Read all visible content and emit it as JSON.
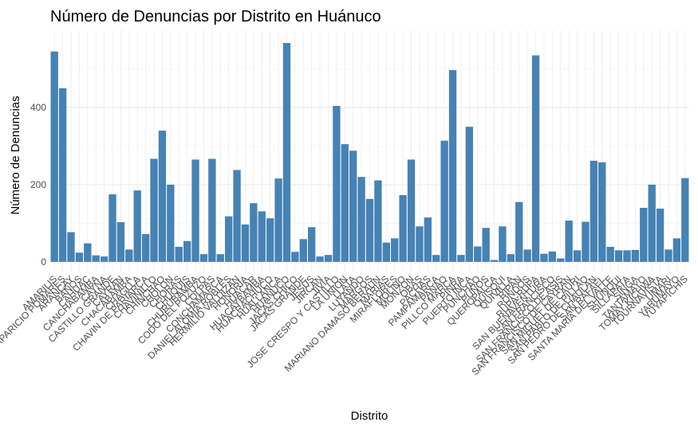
{
  "chart_data": {
    "type": "bar",
    "title": "Número de Denuncias por Distrito en Huánuco",
    "x_label": "Distrito",
    "y_label": "Número de Denuncias",
    "color": "#4682b4",
    "grid": true,
    "categories": [
      "AMARILIS",
      "APARICIO POMARES",
      "ARANCAY",
      "BAÑOS",
      "CAHUAC",
      "CANCHABAMBA",
      "CAYNA",
      "CASTILLO GRANDE",
      "CAYRAN",
      "CHACABAMBA",
      "CHAGLLA",
      "CHAVIN DE PARIARCA",
      "CHAVINILLO",
      "CHINCHAO",
      "CHOLON",
      "CHORAS",
      "CHUQUIS",
      "CHURUBAMBA",
      "CODO DEL POZUZO",
      "COLPAS",
      "CONCHAMARCA",
      "DANIEL ALOMIA ROBLES",
      "HERMILIO VALDIZAN",
      "HONORIA",
      "HUACAR",
      "HUACAYBAMBA",
      "HUACRACHUCO",
      "HUALLANCA",
      "HUANUCO",
      "JACAS CHICO",
      "JACAS GRANDE",
      "JESUS",
      "JIRCAN",
      "JIVIA",
      "JOSE CRESPO Y CASTILLO",
      "LA UNION",
      "LLATA",
      "LUYANDO",
      "MARGOS",
      "MARIANO DAMASO BERAUN",
      "MARIAS",
      "MIRAFLORES",
      "MOLINO",
      "MONZON",
      "OBAS",
      "PACHAS",
      "PAMPAMARCA",
      "PANAO",
      "PILLCO MARCA",
      "PINRA",
      "PUERTO INCA",
      "PUNCHAO",
      "PUÑOS",
      "QUEROPALCA",
      "QUISQUI",
      "QUIVILLA",
      "RIPAN",
      "RONDOS",
      "RUPA-RUPA",
      "SAN BUENAVENTURA",
      "SAN FRANCISCO",
      "SAN FRANCISCO DE ASIS",
      "SAN FRANCISCO DE CAYRAN",
      "SAN MIGUEL DE CAURI",
      "SAN PABLO DE PILLAO",
      "SAN PEDRO DE CHAULAN",
      "SAN RAFAEL",
      "SANTA MARIA DEL VALLE",
      "SHUNQUI",
      "SILLAPATA",
      "SINGA",
      "TANTAMAYO",
      "TOMAY KICHWA",
      "TOURNAVISTA",
      "UMARI",
      "YARUMAYO",
      "YUYAPICHIS"
    ],
    "values": [
      545,
      450,
      77,
      24,
      48,
      17,
      14,
      175,
      103,
      32,
      185,
      72,
      267,
      340,
      200,
      39,
      54,
      265,
      20,
      267,
      20,
      118,
      238,
      97,
      152,
      131,
      113,
      216,
      567,
      26,
      59,
      90,
      14,
      18,
      404,
      305,
      288,
      220,
      163,
      211,
      50,
      61,
      173,
      265,
      92,
      115,
      18,
      314,
      497,
      18,
      350,
      40,
      88,
      5,
      92,
      20,
      155,
      32,
      535,
      21,
      27,
      9,
      107,
      30,
      104,
      262,
      258,
      39,
      30,
      30,
      31,
      140,
      200,
      138,
      32,
      61,
      217
    ],
    "ylim": [
      -25,
      600
    ],
    "yticks": [
      0,
      200,
      400
    ],
    "minor_yticks": [
      100,
      300,
      500
    ]
  }
}
